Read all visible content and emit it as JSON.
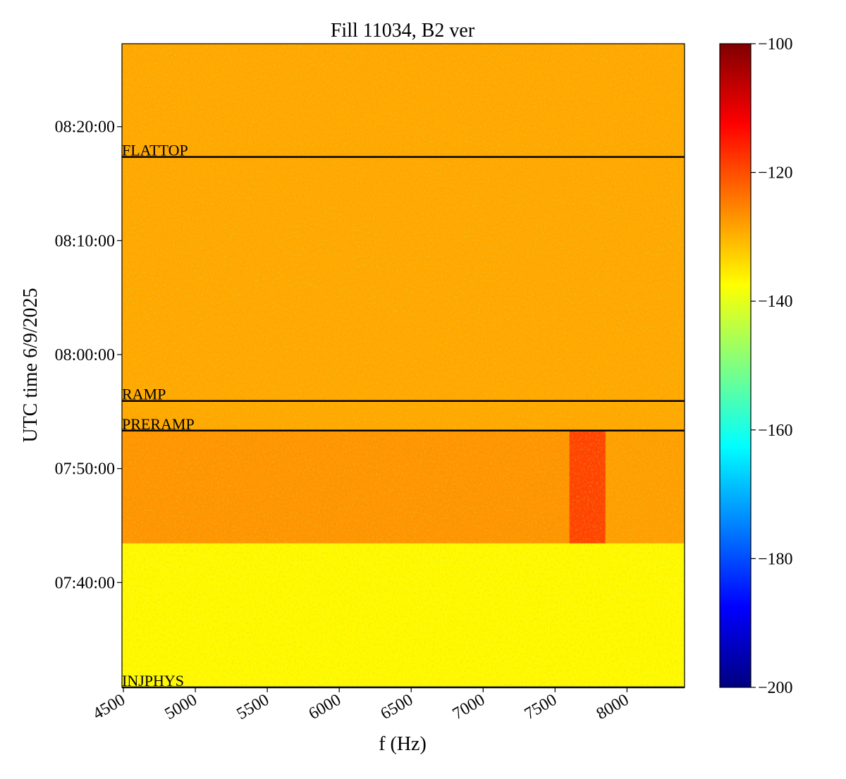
{
  "chart_data": {
    "type": "spectrogram",
    "title": "Fill 11034, B2 ver",
    "x_label": "f (Hz)",
    "y_label": "UTC time 6/9/2025",
    "xlim": [
      4490,
      8400
    ],
    "xticks": [
      4500,
      5000,
      5500,
      6000,
      6500,
      7000,
      7500,
      8000
    ],
    "ylim": [
      "07:30:48",
      "08:27:17"
    ],
    "yticks": [
      "07:40:00",
      "07:50:00",
      "08:00:00",
      "08:10:00",
      "08:20:00"
    ],
    "x_edges": [
      4490,
      7600,
      7850,
      8400
    ],
    "y_edges": [
      "07:30:48",
      "07:43:28",
      "07:53:20",
      "08:27:17"
    ],
    "z": [
      [
        -137,
        -137,
        -137
      ],
      [
        -127,
        -119,
        -128
      ],
      [
        -129,
        -129,
        -129
      ]
    ],
    "colormap": "jet",
    "clim": [
      -200,
      -100
    ],
    "cticks": [
      {
        "value": -200,
        "label": "−200"
      },
      {
        "value": -180,
        "label": "−180"
      },
      {
        "value": -160,
        "label": "−160"
      },
      {
        "value": -140,
        "label": "−140"
      },
      {
        "value": -120,
        "label": "−120"
      },
      {
        "value": -100,
        "label": "−100"
      }
    ],
    "events": [
      {
        "label": "FLATTOP",
        "time": "08:17:21"
      },
      {
        "label": "RAMP",
        "time": "07:55:56"
      },
      {
        "label": "PRERAMP",
        "time": "07:53:20"
      },
      {
        "label": "INJPHYS",
        "time": "07:30:48"
      }
    ]
  }
}
